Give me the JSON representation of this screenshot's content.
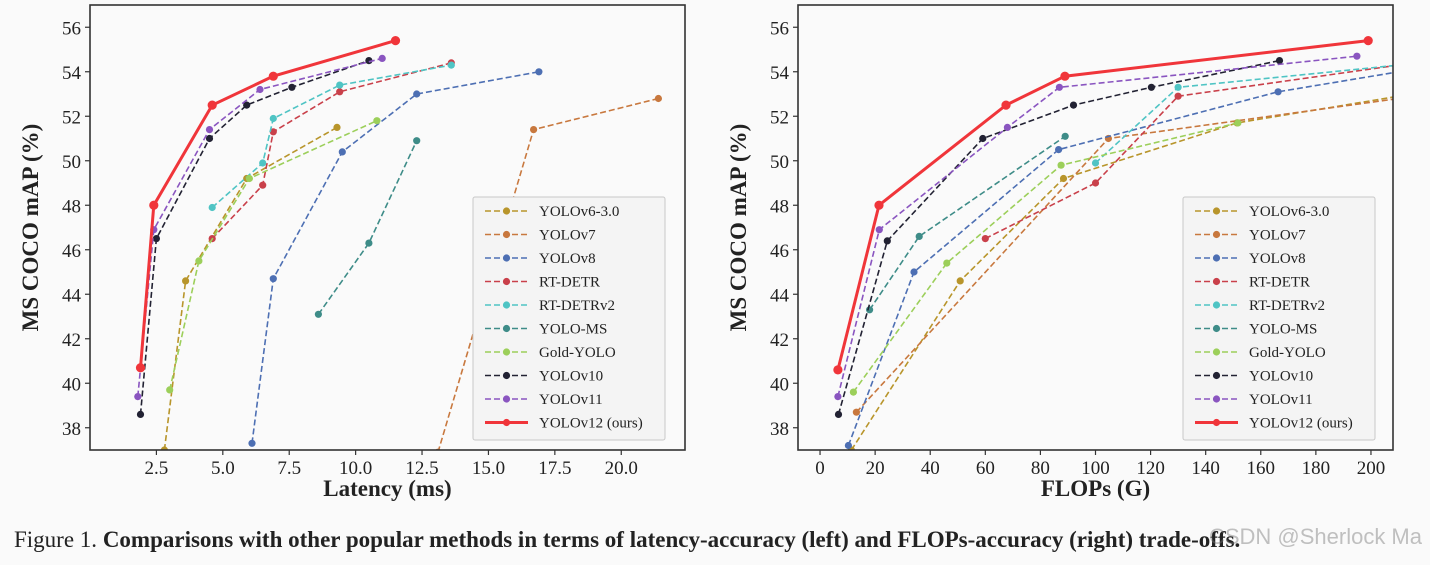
{
  "caption": {
    "prefix": "Figure 1. ",
    "text": "Comparisons with other popular methods in terms of latency-accuracy (left) and FLOPs-accuracy (right) trade-offs."
  },
  "watermark": "CSDN @Sherlock Ma",
  "colors": {
    "YOLOv6-3.0": "#b8952b",
    "YOLOv7": "#c8783e",
    "YOLOv8": "#4d6fb3",
    "RT-DETR": "#c9404a",
    "RT-DETRv2": "#4fc4c4",
    "YOLO-MS": "#3e8c88",
    "Gold-YOLO": "#9ccf5a",
    "YOLOv10": "#222233",
    "YOLOv11": "#8a55c0",
    "YOLOv12 (ours)": "#f0353a"
  },
  "chart_data": [
    {
      "type": "line",
      "xlabel": "Latency (ms)",
      "ylabel": "MS COCO mAP (%)",
      "xlim": [
        0,
        22.4
      ],
      "ylim": [
        37,
        57
      ],
      "xticks": [
        "2.5",
        "5.0",
        "7.5",
        "10.0",
        "12.5",
        "15.0",
        "17.5",
        "20.0"
      ],
      "xtick_values": [
        2.5,
        5.0,
        7.5,
        10.0,
        12.5,
        15.0,
        17.5,
        20.0
      ],
      "yticks": [
        "38",
        "40",
        "42",
        "44",
        "46",
        "48",
        "50",
        "52",
        "54",
        "56"
      ],
      "ytick_values": [
        38,
        40,
        42,
        44,
        46,
        48,
        50,
        52,
        54,
        56
      ],
      "grid": false,
      "legend_position": "lower-right",
      "series": [
        {
          "name": "YOLOv6-3.0",
          "style": "dashed",
          "x": [
            2.8,
            3.6,
            5.9,
            9.3
          ],
          "y": [
            37.0,
            44.6,
            49.2,
            51.5
          ]
        },
        {
          "name": "YOLOv7",
          "style": "dashed",
          "x": [
            13.1,
            16.7,
            21.4
          ],
          "y": [
            36.9,
            51.4,
            52.8
          ]
        },
        {
          "name": "YOLOv8",
          "style": "dashed",
          "x": [
            6.1,
            6.9,
            9.5,
            12.3,
            16.9
          ],
          "y": [
            37.3,
            44.7,
            50.4,
            53.0,
            54.0
          ]
        },
        {
          "name": "RT-DETR",
          "style": "dashed",
          "x": [
            4.6,
            6.5,
            6.9,
            9.4,
            13.6
          ],
          "y": [
            46.5,
            48.9,
            51.3,
            53.1,
            54.4
          ]
        },
        {
          "name": "RT-DETRv2",
          "style": "dashed",
          "x": [
            4.6,
            6.5,
            6.9,
            9.4,
            13.6
          ],
          "y": [
            47.9,
            49.9,
            51.9,
            53.4,
            54.3
          ]
        },
        {
          "name": "YOLO-MS",
          "style": "dashed",
          "x": [
            8.6,
            10.5,
            12.3
          ],
          "y": [
            43.1,
            46.3,
            50.9
          ]
        },
        {
          "name": "Gold-YOLO",
          "style": "dashed",
          "x": [
            3.0,
            4.1,
            6.0,
            10.8
          ],
          "y": [
            39.7,
            45.5,
            49.2,
            51.8
          ]
        },
        {
          "name": "YOLOv10",
          "style": "dashed",
          "x": [
            1.9,
            2.5,
            4.5,
            5.9,
            7.6,
            10.5
          ],
          "y": [
            38.6,
            46.5,
            51.0,
            52.5,
            53.3,
            54.5
          ]
        },
        {
          "name": "YOLOv11",
          "style": "dashed",
          "x": [
            1.8,
            2.4,
            4.5,
            6.4,
            11.0
          ],
          "y": [
            39.4,
            46.9,
            51.4,
            53.2,
            54.6
          ]
        },
        {
          "name": "YOLOv12 (ours)",
          "style": "solid",
          "x": [
            1.9,
            2.4,
            4.6,
            6.9,
            11.5
          ],
          "y": [
            40.7,
            48.0,
            52.5,
            53.8,
            55.4
          ]
        }
      ]
    },
    {
      "type": "line",
      "xlabel": "FLOPs (G)",
      "ylabel": "MS COCO mAP (%)",
      "xlim": [
        -8,
        208
      ],
      "ylim": [
        37,
        57
      ],
      "xticks": [
        "0",
        "20",
        "40",
        "60",
        "80",
        "100",
        "120",
        "140",
        "160",
        "180",
        "200"
      ],
      "xtick_values": [
        0,
        20,
        40,
        60,
        80,
        100,
        120,
        140,
        160,
        180,
        200
      ],
      "yticks": [
        "38",
        "40",
        "42",
        "44",
        "46",
        "48",
        "50",
        "52",
        "54",
        "56"
      ],
      "ytick_values": [
        38,
        40,
        42,
        44,
        46,
        48,
        50,
        52,
        54,
        56
      ],
      "grid": false,
      "legend_position": "lower-right",
      "series": [
        {
          "name": "YOLOv6-3.0",
          "style": "dashed",
          "x": [
            11.4,
            50.9,
            88.4,
            151.4,
            210.0
          ],
          "y": [
            37.0,
            44.6,
            49.2,
            51.7,
            52.9
          ]
        },
        {
          "name": "YOLOv7",
          "style": "dashed",
          "x": [
            13.2,
            104.7,
            210.0
          ],
          "y": [
            38.7,
            51.0,
            52.8
          ]
        },
        {
          "name": "YOLOv8",
          "style": "dashed",
          "x": [
            10.3,
            34.1,
            86.6,
            166.3,
            210.0
          ],
          "y": [
            37.2,
            45.0,
            50.5,
            53.1,
            54.0
          ]
        },
        {
          "name": "RT-DETR",
          "style": "dashed",
          "x": [
            60.0,
            100.0,
            130.0,
            210.0
          ],
          "y": [
            46.5,
            49.0,
            52.9,
            54.3
          ]
        },
        {
          "name": "RT-DETRv2",
          "style": "dashed",
          "x": [
            100.0,
            130.0,
            210.0
          ],
          "y": [
            49.9,
            53.3,
            54.3
          ]
        },
        {
          "name": "YOLO-MS",
          "style": "dashed",
          "x": [
            18.0,
            36.0,
            89.0
          ],
          "y": [
            43.3,
            46.6,
            51.1
          ]
        },
        {
          "name": "Gold-YOLO",
          "style": "dashed",
          "x": [
            12.1,
            46.0,
            87.5,
            151.7
          ],
          "y": [
            39.6,
            45.4,
            49.8,
            51.7
          ]
        },
        {
          "name": "YOLOv10",
          "style": "dashed",
          "x": [
            6.7,
            24.4,
            59.1,
            92.0,
            120.3,
            166.8
          ],
          "y": [
            38.6,
            46.4,
            51.0,
            52.5,
            53.3,
            54.5
          ]
        },
        {
          "name": "YOLOv11",
          "style": "dashed",
          "x": [
            6.5,
            21.5,
            68.0,
            86.9,
            194.9
          ],
          "y": [
            39.4,
            46.9,
            51.5,
            53.3,
            54.7
          ]
        },
        {
          "name": "YOLOv12 (ours)",
          "style": "solid",
          "x": [
            6.5,
            21.4,
            67.5,
            88.9,
            199.0
          ],
          "y": [
            40.6,
            48.0,
            52.5,
            53.8,
            55.4
          ]
        }
      ]
    }
  ]
}
